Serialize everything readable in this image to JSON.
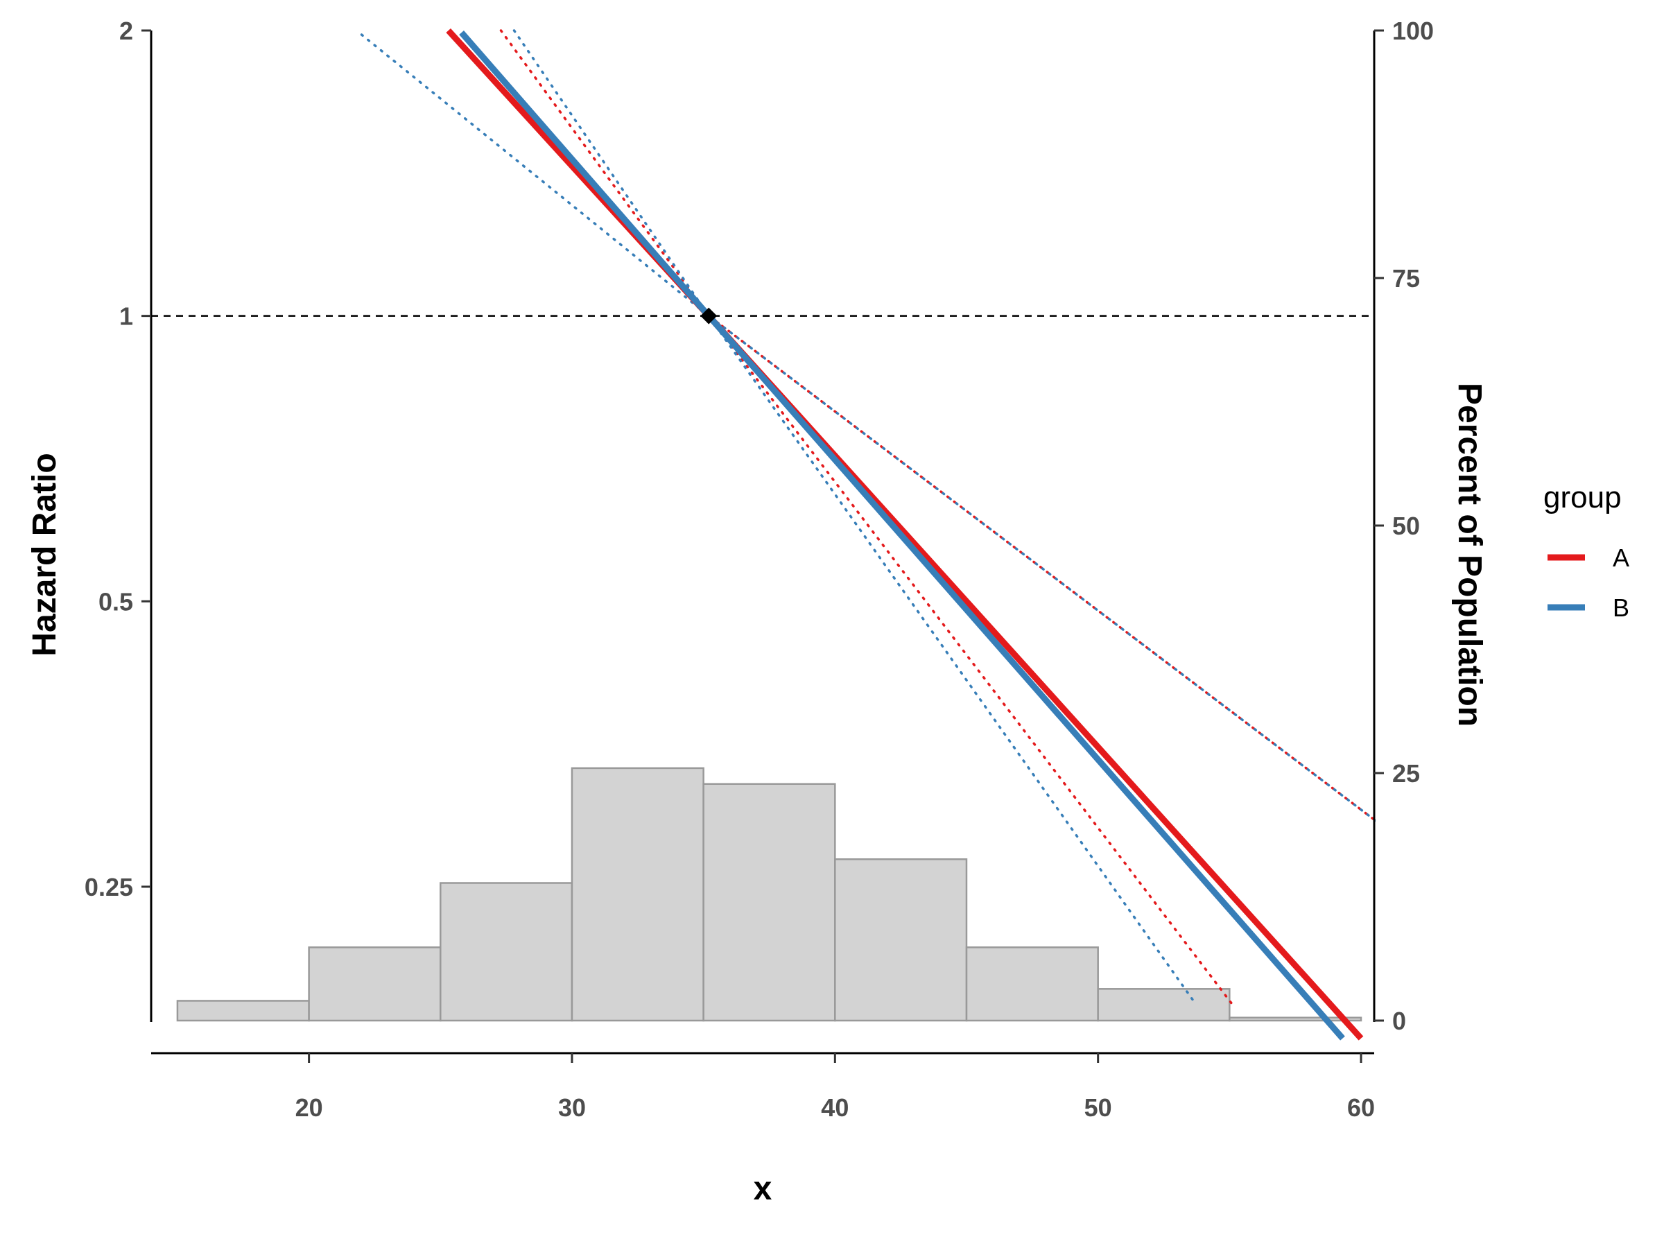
{
  "chart_data": {
    "type": "line",
    "xlabel": "x",
    "ylabel": "Hazard Ratio",
    "y2label": "Percent of Population",
    "xlim": [
      14,
      60.5
    ],
    "ylim": [
      0.18,
      2
    ],
    "y_scale": "log2",
    "y2lim": [
      0,
      100
    ],
    "x_ticks": [
      20,
      30,
      40,
      50,
      60
    ],
    "y_ticks": [
      0.25,
      0.5,
      1,
      2
    ],
    "y_tick_labels": [
      "0.25",
      "0.5",
      "1",
      "2"
    ],
    "y2_ticks": [
      0,
      25,
      50,
      75,
      100
    ],
    "reference_line": {
      "y": 1,
      "style": "dashed"
    },
    "reference_point": {
      "x": 35.2,
      "y": 1
    },
    "legend": {
      "title": "group",
      "position": "right"
    },
    "series": [
      {
        "name": "A",
        "color": "#E41A1C",
        "x": [
          25.3,
          35.2,
          60
        ],
        "y": [
          2.0,
          1.0,
          0.173
        ],
        "ci_lower": {
          "x": [
            27.3,
            35.2,
            55.1
          ],
          "y": [
            2.0,
            1.0,
            0.188
          ]
        },
        "ci_upper": {
          "x": [
            35.2,
            60.8
          ],
          "y": [
            1.0,
            0.29
          ]
        }
      },
      {
        "name": "B",
        "color": "#377EB8",
        "x": [
          25.8,
          35.2,
          59.3
        ],
        "y": [
          1.99,
          1.0,
          0.173
        ],
        "ci_lower": {
          "x": [
            27.8,
            35.2,
            53.6
          ],
          "y": [
            2.0,
            1.0,
            0.19
          ]
        },
        "ci_upper": {
          "x": [
            22.0,
            35.2,
            60.8
          ],
          "y": [
            1.98,
            1.0,
            0.29
          ]
        }
      }
    ],
    "histogram": {
      "bin_edges": [
        15,
        20,
        25,
        30,
        35,
        40,
        45,
        50,
        55,
        60
      ],
      "percent": [
        2.0,
        7.4,
        13.9,
        25.5,
        23.9,
        16.3,
        7.4,
        3.2,
        0.3
      ],
      "fill": "#D3D3D3",
      "stroke": "#999999"
    }
  }
}
